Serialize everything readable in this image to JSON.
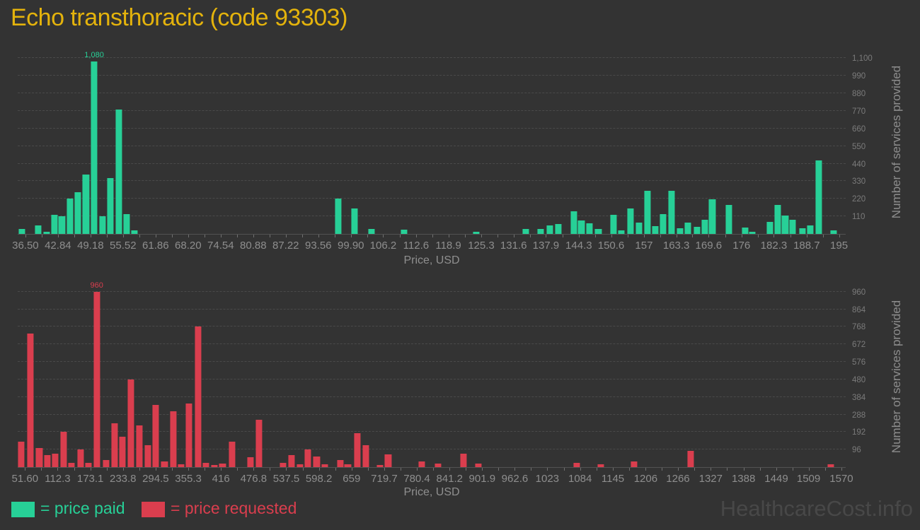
{
  "title": "Echo transthoracic (code 93303)",
  "watermark": "HealthcareCost.info",
  "legend": {
    "paid_label": "= price paid",
    "requested_label": "= price requested"
  },
  "colors": {
    "background": "#333333",
    "title": "#e4b30c",
    "price_paid": "#27d097",
    "price_requested": "#da3e4e",
    "gridline": "#4a4a4a",
    "axis_text": "#8e8e8e",
    "right_axis_text": "#7b7b7b",
    "watermark": "#484848"
  },
  "chart_data": [
    {
      "type": "bar",
      "series_name": "price paid",
      "color": "#27d097",
      "xlabel": "Price, USD",
      "ylabel": "Number of services provided",
      "grid": true,
      "xlim": [
        35.0,
        196.3
      ],
      "ylim": [
        0,
        1150
      ],
      "peak_label": "1,080",
      "x_tick_values": [
        36.5,
        42.84,
        49.18,
        55.52,
        61.86,
        68.2,
        74.54,
        80.88,
        87.22,
        93.56,
        99.9,
        106.2,
        112.6,
        118.9,
        125.3,
        131.6,
        137.9,
        144.3,
        150.6,
        157,
        163.3,
        169.6,
        176,
        182.3,
        188.7,
        195
      ],
      "x_tick_labels": [
        "36.50",
        "42.84",
        "49.18",
        "55.52",
        "61.86",
        "68.20",
        "74.54",
        "80.88",
        "87.22",
        "93.56",
        "99.90",
        "106.2",
        "112.6",
        "118.9",
        "125.3",
        "131.6",
        "137.9",
        "144.3",
        "150.6",
        "157",
        "163.3",
        "169.6",
        "176",
        "182.3",
        "188.7",
        "195"
      ],
      "y_tick_values": [
        110,
        220,
        330,
        440,
        550,
        660,
        770,
        880,
        990,
        1100
      ],
      "y_tick_labels": [
        "110",
        "220",
        "330",
        "440",
        "550",
        "660",
        "770",
        "880",
        "990",
        "1,100"
      ],
      "bars": [
        [
          35.8,
          30
        ],
        [
          39.0,
          55
        ],
        [
          40.6,
          15
        ],
        [
          42.1,
          120
        ],
        [
          43.6,
          110
        ],
        [
          45.2,
          220
        ],
        [
          46.7,
          260
        ],
        [
          48.3,
          370
        ],
        [
          49.9,
          1080
        ],
        [
          51.5,
          110
        ],
        [
          53.1,
          350
        ],
        [
          54.7,
          780
        ],
        [
          56.2,
          125
        ],
        [
          57.7,
          20
        ],
        [
          97.4,
          220
        ],
        [
          100.6,
          160
        ],
        [
          103.9,
          30
        ],
        [
          110.3,
          25
        ],
        [
          124.3,
          15
        ],
        [
          134.0,
          30
        ],
        [
          136.9,
          30
        ],
        [
          138.7,
          55
        ],
        [
          140.3,
          60
        ],
        [
          143.4,
          140
        ],
        [
          144.8,
          85
        ],
        [
          146.4,
          65
        ],
        [
          148.1,
          30
        ],
        [
          151.1,
          120
        ],
        [
          152.6,
          20
        ],
        [
          154.4,
          160
        ],
        [
          156.0,
          70
        ],
        [
          157.7,
          270
        ],
        [
          159.2,
          50
        ],
        [
          160.7,
          125
        ],
        [
          162.4,
          270
        ],
        [
          164.0,
          35
        ],
        [
          165.6,
          70
        ],
        [
          167.3,
          45
        ],
        [
          168.9,
          90
        ],
        [
          170.3,
          215
        ],
        [
          173.6,
          180
        ],
        [
          176.7,
          40
        ],
        [
          178.1,
          15
        ],
        [
          181.6,
          75
        ],
        [
          183.1,
          180
        ],
        [
          184.5,
          115
        ],
        [
          186.0,
          90
        ],
        [
          187.9,
          35
        ],
        [
          189.4,
          55
        ],
        [
          191.0,
          460
        ],
        [
          194.0,
          20
        ]
      ]
    },
    {
      "type": "bar",
      "series_name": "price requested",
      "color": "#da3e4e",
      "xlabel": "Price, USD",
      "ylabel": "Number of services provided",
      "grid": true,
      "xlim": [
        38,
        1578
      ],
      "ylim": [
        0,
        990
      ],
      "peak_label": "960",
      "x_tick_values": [
        51.6,
        112.3,
        173.1,
        233.8,
        294.5,
        355.3,
        416,
        476.8,
        537.5,
        598.2,
        659,
        719.7,
        780.4,
        841.2,
        901.9,
        962.6,
        1023,
        1084,
        1145,
        1206,
        1266,
        1327,
        1388,
        1449,
        1509,
        1570
      ],
      "x_tick_labels": [
        "51.60",
        "112.3",
        "173.1",
        "233.8",
        "294.5",
        "355.3",
        "416",
        "476.8",
        "537.5",
        "598.2",
        "659",
        "719.7",
        "780.4",
        "841.2",
        "901.9",
        "962.6",
        "1023",
        "1084",
        "1145",
        "1206",
        "1266",
        "1327",
        "1388",
        "1449",
        "1509",
        "1570"
      ],
      "y_tick_values": [
        96,
        192,
        288,
        384,
        480,
        576,
        672,
        768,
        864,
        960
      ],
      "y_tick_labels": [
        "96",
        "192",
        "288",
        "384",
        "480",
        "576",
        "672",
        "768",
        "864",
        "960"
      ],
      "bars": [
        [
          45,
          140
        ],
        [
          62,
          730
        ],
        [
          78,
          105
        ],
        [
          93,
          65
        ],
        [
          108,
          75
        ],
        [
          124,
          195
        ],
        [
          138,
          25
        ],
        [
          155,
          95
        ],
        [
          170,
          25
        ],
        [
          185,
          960
        ],
        [
          202,
          40
        ],
        [
          218,
          240
        ],
        [
          233,
          165
        ],
        [
          248,
          480
        ],
        [
          264,
          230
        ],
        [
          280,
          120
        ],
        [
          295,
          340
        ],
        [
          311,
          30
        ],
        [
          327,
          305
        ],
        [
          342,
          15
        ],
        [
          357,
          350
        ],
        [
          373,
          770
        ],
        [
          388,
          25
        ],
        [
          404,
          10
        ],
        [
          419,
          20
        ],
        [
          437,
          140
        ],
        [
          471,
          55
        ],
        [
          487,
          260
        ],
        [
          532,
          25
        ],
        [
          547,
          65
        ],
        [
          563,
          15
        ],
        [
          578,
          95
        ],
        [
          594,
          60
        ],
        [
          609,
          15
        ],
        [
          638,
          40
        ],
        [
          652,
          15
        ],
        [
          670,
          185
        ],
        [
          685,
          120
        ],
        [
          712,
          10
        ],
        [
          727,
          70
        ],
        [
          789,
          30
        ],
        [
          820,
          20
        ],
        [
          867,
          75
        ],
        [
          895,
          20
        ],
        [
          1078,
          25
        ],
        [
          1122,
          15
        ],
        [
          1184,
          30
        ],
        [
          1290,
          90
        ],
        [
          1550,
          15
        ]
      ]
    }
  ]
}
